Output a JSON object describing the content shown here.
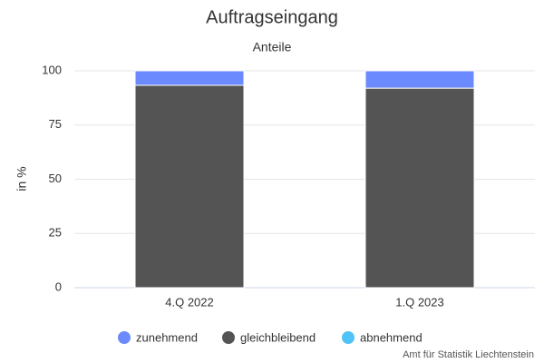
{
  "chart_data": {
    "type": "stacked_bar",
    "title": "Auftragseingang",
    "subtitle": "Anteile",
    "y_label": "in %",
    "categories": [
      "4.Q 2022",
      "1.Q 2023"
    ],
    "series": [
      {
        "name": "zunehmend",
        "color": "#6b8afd",
        "values": [
          6.7,
          8
        ]
      },
      {
        "name": "gleichbleibend",
        "color": "#545454",
        "values": [
          93.3,
          92
        ]
      },
      {
        "name": "abnehmend",
        "color": "#4fc3f7",
        "values": [
          0,
          0
        ]
      }
    ],
    "ylim": [
      0,
      100
    ],
    "yticks": [
      0,
      25,
      50,
      75,
      100
    ],
    "grid": true,
    "credits": "Amt für Statistik Liechtenstein"
  }
}
